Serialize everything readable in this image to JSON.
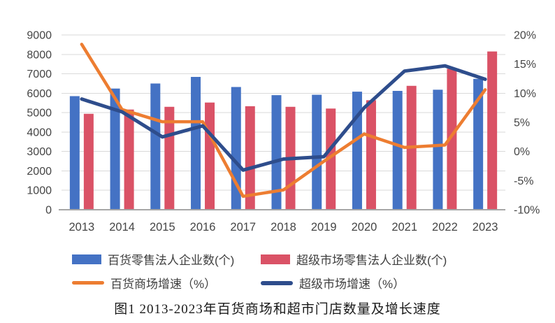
{
  "figure_caption": "图1 2013-2023年百货商场和超市门店数量及增长速度",
  "chart_data": {
    "type": "bar",
    "subtype": "combo bar+line, dual axis",
    "categories": [
      "2013",
      "2014",
      "2015",
      "2016",
      "2017",
      "2018",
      "2019",
      "2020",
      "2021",
      "2022",
      "2023"
    ],
    "series": [
      {
        "key": "dept-store-count",
        "name": "百货零售法人企业数(个)",
        "type": "bar",
        "axis": "left",
        "color": "#4472C4",
        "values": [
          5850,
          6240,
          6500,
          6840,
          6320,
          5900,
          5920,
          6080,
          6120,
          6180,
          6740
        ]
      },
      {
        "key": "supermarket-count",
        "name": "超级市场零售法人企业数(个)",
        "type": "bar",
        "axis": "left",
        "color": "#DA5266",
        "values": [
          4940,
          5160,
          5300,
          5520,
          5330,
          5300,
          5210,
          5640,
          6380,
          7260,
          8150
        ]
      },
      {
        "key": "dept-store-growth",
        "name": "百货商场增速（%）",
        "type": "line",
        "axis": "right",
        "color": "#ED7D31",
        "values": [
          18.4,
          7.2,
          5.1,
          5.1,
          -7.7,
          -6.6,
          -1.7,
          3.0,
          0.7,
          1.1,
          10.6
        ]
      },
      {
        "key": "supermarket-growth",
        "name": "超级市场增速（%）",
        "type": "line",
        "axis": "right",
        "color": "#2E4D8C",
        "values": [
          9.0,
          6.8,
          2.5,
          4.4,
          -3.2,
          -1.3,
          -0.9,
          7.5,
          13.8,
          14.7,
          12.4
        ]
      }
    ],
    "left_axis": {
      "min": 0,
      "max": 9000,
      "step": 1000,
      "tick_labels": [
        "9000",
        "8000",
        "7000",
        "6000",
        "5000",
        "4000",
        "3000",
        "2000",
        "1000",
        "0"
      ]
    },
    "right_axis": {
      "min": -10,
      "max": 20,
      "step": 5,
      "tick_labels": [
        "20%",
        "15%",
        "10%",
        "5%",
        "0%",
        "-5%",
        "-10%"
      ]
    },
    "grid": true,
    "legend_position": "bottom",
    "title": ""
  },
  "colors": {
    "gridline": "#D9D9D9",
    "axis_line": "#A6A6A6",
    "tick_text": "#454545",
    "legend_text": "#3F3F3F",
    "background": "#FFFFFF"
  }
}
